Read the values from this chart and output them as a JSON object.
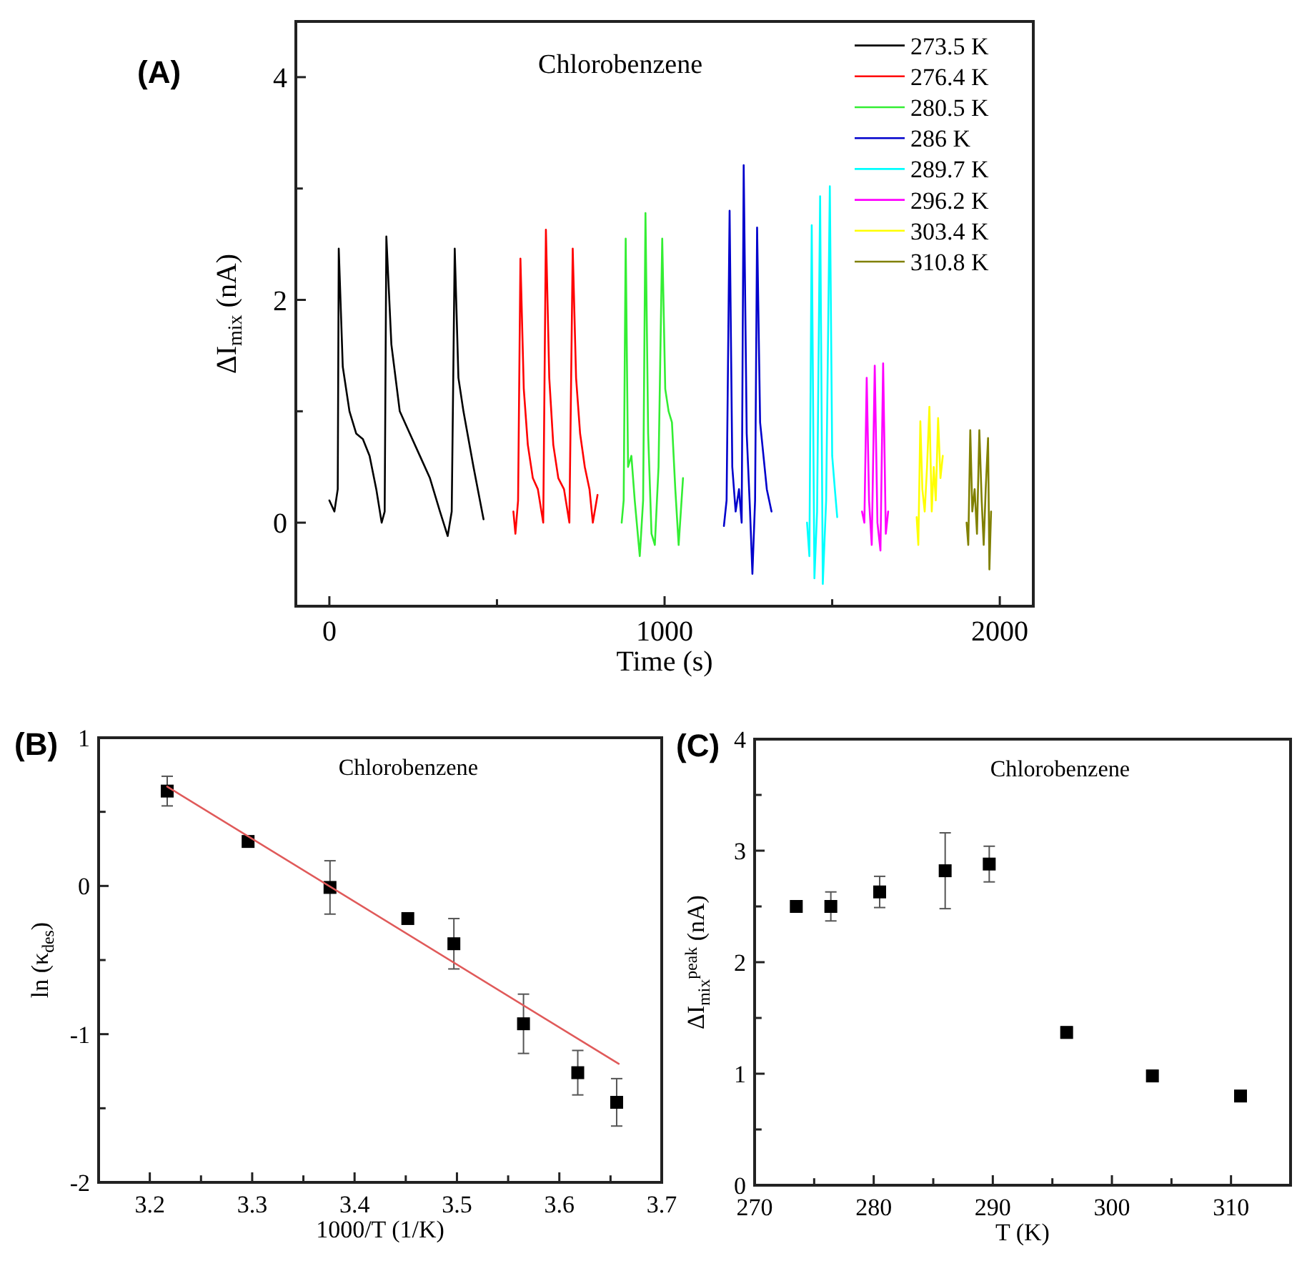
{
  "chart_data": [
    {
      "type": "line",
      "title": "(A)",
      "xlabel": "Time (s)",
      "ylabel": "ΔI$_{mix}$ (nA)",
      "annotations": [
        "Chlorobenzene"
      ],
      "legend": "top right",
      "xlim": [
        -100,
        2100
      ],
      "xticks": [
        0,
        {
          "value": 500,
          "label": null
        },
        1000,
        {
          "value": 1500,
          "label": null
        },
        2000
      ],
      "ylim": [
        -0.75,
        4.5
      ],
      "yticks": [
        0,
        {
          "value": 1,
          "label": null
        },
        2,
        {
          "value": 3,
          "label": null
        },
        4
      ],
      "series": [
        {
          "name": "273.5 K",
          "color": "#000000",
          "x": [
            0,
            15,
            25,
            28,
            40,
            60,
            80,
            100,
            120,
            140,
            156,
            165,
            170,
            185,
            210,
            240,
            270,
            300,
            330,
            353,
            365,
            374,
            385,
            400,
            430,
            460
          ],
          "values": [
            0.2,
            0.1,
            0.3,
            2.46,
            1.4,
            1.0,
            0.8,
            0.75,
            0.6,
            0.3,
            0.0,
            0.1,
            2.57,
            1.6,
            1.0,
            0.8,
            0.6,
            0.4,
            0.1,
            -0.12,
            0.1,
            2.46,
            1.3,
            1.0,
            0.5,
            0.03
          ]
        },
        {
          "name": "276.4 K",
          "color": "#ff0000",
          "x": [
            549,
            555,
            563,
            570,
            580,
            592,
            607,
            622,
            638,
            646,
            656,
            668,
            683,
            700,
            716,
            726,
            736,
            748,
            762,
            776,
            786,
            800
          ],
          "values": [
            0.1,
            -0.1,
            0.2,
            2.37,
            1.2,
            0.7,
            0.4,
            0.3,
            0.0,
            2.63,
            1.3,
            0.7,
            0.4,
            0.3,
            0.0,
            2.46,
            1.3,
            0.8,
            0.5,
            0.3,
            0.0,
            0.25
          ]
        },
        {
          "name": "280.5 K",
          "color": "#33ee33",
          "x": [
            872,
            878,
            884,
            891,
            901,
            911,
            926,
            936,
            943,
            951,
            961,
            971,
            982,
            993,
            1002,
            1012,
            1022,
            1032,
            1042,
            1055
          ],
          "values": [
            0.0,
            0.2,
            2.55,
            0.5,
            0.6,
            0.2,
            -0.3,
            0.2,
            2.78,
            0.8,
            -0.1,
            -0.2,
            0.5,
            2.55,
            1.2,
            1.0,
            0.9,
            0.3,
            -0.2,
            0.4
          ]
        },
        {
          "name": "286 K",
          "color": "#0000cc",
          "x": [
            1177,
            1185,
            1194,
            1202,
            1212,
            1222,
            1230,
            1236,
            1245,
            1255,
            1262,
            1270,
            1276,
            1285,
            1295,
            1305,
            1319
          ],
          "values": [
            -0.03,
            0.2,
            2.8,
            0.5,
            0.1,
            0.3,
            0.0,
            3.21,
            0.8,
            0.1,
            -0.46,
            0.2,
            2.65,
            0.9,
            0.6,
            0.3,
            0.1
          ]
        },
        {
          "name": "289.7 K",
          "color": "#00ffff",
          "x": [
            1425,
            1432,
            1439,
            1447,
            1455,
            1464,
            1472,
            1482,
            1493,
            1500,
            1508,
            1515
          ],
          "values": [
            0.0,
            -0.3,
            2.67,
            -0.5,
            0.1,
            2.93,
            -0.55,
            0.2,
            3.02,
            0.6,
            0.3,
            0.05
          ]
        },
        {
          "name": "296.2 K",
          "color": "#ff00ff",
          "x": [
            1589,
            1596,
            1603,
            1610,
            1618,
            1627,
            1635,
            1644,
            1652,
            1660,
            1667
          ],
          "values": [
            0.1,
            0.0,
            1.3,
            0.2,
            -0.2,
            1.41,
            0.0,
            -0.25,
            1.43,
            -0.1,
            0.1
          ]
        },
        {
          "name": "303.4 K",
          "color": "#ffff00",
          "x": [
            1752,
            1757,
            1763,
            1769,
            1776,
            1783,
            1790,
            1797,
            1803,
            1809,
            1816,
            1823,
            1830
          ],
          "values": [
            0.05,
            -0.2,
            0.91,
            0.3,
            0.1,
            0.5,
            1.04,
            0.1,
            0.5,
            0.2,
            0.94,
            0.4,
            0.6
          ]
        },
        {
          "name": "310.8 K",
          "color": "#808000",
          "x": [
            1901,
            1906,
            1912,
            1918,
            1925,
            1932,
            1939,
            1946,
            1952,
            1958,
            1965,
            1969,
            1974
          ],
          "values": [
            0.0,
            -0.2,
            0.83,
            0.1,
            0.3,
            -0.1,
            0.83,
            0.2,
            -0.2,
            0.3,
            0.76,
            -0.42,
            0.1
          ]
        }
      ]
    },
    {
      "type": "scatter",
      "title": "(B)",
      "xlabel": "1000/T (1/K)",
      "ylabel": "ln (κ$_{des}$)",
      "annotations": [
        "Chlorobenzene"
      ],
      "xlim": [
        3.15,
        3.7
      ],
      "xticks": [
        3.2,
        {
          "value": 3.25,
          "label": null
        },
        3.3,
        {
          "value": 3.35,
          "label": null
        },
        3.4,
        {
          "value": 3.45,
          "label": null
        },
        3.5,
        {
          "value": 3.55,
          "label": null
        },
        3.6,
        {
          "value": 3.65,
          "label": null
        },
        3.7
      ],
      "ylim": [
        -2,
        1
      ],
      "yticks": [
        -2,
        {
          "value": -1.5,
          "label": null
        },
        -1,
        {
          "value": -0.5,
          "label": null
        },
        0,
        {
          "value": 0.5,
          "label": null
        },
        1
      ],
      "series": [
        {
          "marker": "square",
          "color": "#000000",
          "x": [
            3.217,
            3.296,
            3.376,
            3.452,
            3.497,
            3.565,
            3.618,
            3.656
          ],
          "values": [
            0.64,
            0.3,
            -0.01,
            -0.22,
            -0.39,
            -0.93,
            -1.26,
            -1.46
          ],
          "errors": [
            0.1,
            0.03,
            0.18,
            0.03,
            0.17,
            0.2,
            0.15,
            0.16
          ]
        },
        {
          "type": "line",
          "color": "#e05a5a",
          "x": [
            3.217,
            3.658
          ],
          "values": [
            0.67,
            -1.2
          ]
        }
      ]
    },
    {
      "type": "scatter",
      "title": "(C)",
      "xlabel": "T (K)",
      "ylabel": "ΔI$_{mix}$$^{peak}$ (nA)",
      "annotations": [
        "Chlorobenzene"
      ],
      "xlim": [
        270,
        315
      ],
      "xticks": [
        270,
        {
          "value": 275,
          "label": null
        },
        280,
        {
          "value": 285,
          "label": null
        },
        290,
        {
          "value": 295,
          "label": null
        },
        300,
        {
          "value": 305,
          "label": null
        },
        310
      ],
      "ylim": [
        0,
        4
      ],
      "yticks": [
        0,
        {
          "value": 0.5,
          "label": null
        },
        1,
        {
          "value": 1.5,
          "label": null
        },
        2,
        {
          "value": 2.5,
          "label": null
        },
        3,
        {
          "value": 3.5,
          "label": null
        },
        4
      ],
      "series": [
        {
          "marker": "square",
          "color": "#000000",
          "x": [
            273.5,
            276.4,
            280.5,
            286,
            289.7,
            296.2,
            303.4,
            310.8
          ],
          "values": [
            2.5,
            2.5,
            2.63,
            2.82,
            2.88,
            1.37,
            0.98,
            0.8
          ],
          "errors": [
            null,
            0.13,
            0.14,
            0.34,
            0.16,
            0.05,
            0.05,
            null
          ]
        }
      ]
    }
  ]
}
